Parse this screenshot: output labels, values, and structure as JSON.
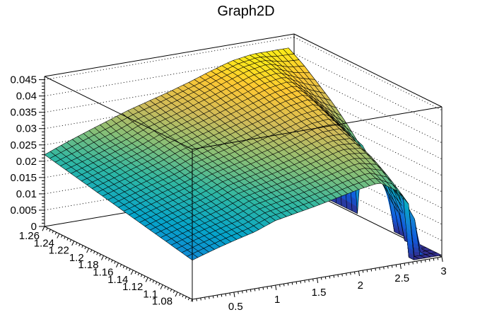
{
  "title": "Graph2D",
  "chart_data": {
    "type": "surface",
    "title": "Graph2D",
    "style": "ROOT TGraph2D surf1 (black mesh, palette-filled surface, dotted z-grid on back walls)",
    "x_axis": {
      "min": 0,
      "max": 3,
      "major_ticks": [
        0.5,
        1,
        1.5,
        2,
        2.5,
        3
      ],
      "labels": [
        "0.5",
        "1",
        "1.5",
        "2",
        "2.5",
        "3"
      ],
      "minor_step": 0.05
    },
    "y_axis": {
      "min": 1.06,
      "max": 1.26,
      "major_ticks": [
        1.08,
        1.1,
        1.12,
        1.14,
        1.16,
        1.18,
        1.2,
        1.22,
        1.24,
        1.26
      ],
      "labels": [
        "1.08",
        "1.1",
        "1.12",
        "1.14",
        "1.16",
        "1.18",
        "1.2",
        "1.22",
        "1.24",
        "1.26"
      ],
      "minor_step": 0.004
    },
    "z_axis": {
      "min": 0,
      "max_label": 0.045,
      "box_max": 0.046,
      "color_max": 0.0435,
      "major_ticks": [
        0,
        0.005,
        0.01,
        0.015,
        0.02,
        0.025,
        0.03,
        0.035,
        0.04,
        0.045
      ],
      "labels": [
        "0",
        "0.005",
        "0.01",
        "0.015",
        "0.02",
        "0.025",
        "0.03",
        "0.035",
        "0.04",
        "0.045"
      ],
      "minor_step": 0.001
    },
    "surface_grid": {
      "x_values": [
        0,
        0.25,
        0.5,
        0.75,
        1,
        1.25,
        1.5,
        1.75,
        2,
        2.25,
        2.5,
        2.75,
        3
      ],
      "y_values": [
        1.06,
        1.08,
        1.1,
        1.12,
        1.14,
        1.16,
        1.18,
        1.2,
        1.22,
        1.24,
        1.26
      ],
      "z_values": [
        [
          0.012,
          0.014,
          0.0158,
          0.0174,
          0.0198,
          0.021,
          0.0222,
          0.0236,
          0.025,
          0.026,
          0.022,
          0.012,
          0.0005
        ],
        [
          0.013,
          0.015,
          0.0168,
          0.0185,
          0.0209,
          0.0222,
          0.0235,
          0.025,
          0.0267,
          0.028,
          0.026,
          0.014,
          0.0005
        ],
        [
          0.014,
          0.016,
          0.0178,
          0.0196,
          0.022,
          0.0234,
          0.0248,
          0.0264,
          0.0281,
          0.0298,
          0.029,
          0.018,
          0.0005
        ],
        [
          0.015,
          0.017,
          0.0189,
          0.0207,
          0.0231,
          0.0246,
          0.0261,
          0.0277,
          0.0295,
          0.0313,
          0.031,
          0.022,
          0.006
        ],
        [
          0.016,
          0.018,
          0.0199,
          0.0218,
          0.0242,
          0.0258,
          0.0274,
          0.0291,
          0.0309,
          0.0328,
          0.033,
          0.025,
          0.014
        ],
        [
          0.017,
          0.019,
          0.021,
          0.0229,
          0.0253,
          0.027,
          0.0287,
          0.0305,
          0.0323,
          0.0342,
          0.035,
          0.028,
          0.02
        ],
        [
          0.018,
          0.02,
          0.022,
          0.024,
          0.0264,
          0.0282,
          0.03,
          0.0319,
          0.0338,
          0.0358,
          0.037,
          0.031,
          0.026
        ],
        [
          0.019,
          0.021,
          0.0231,
          0.0251,
          0.0276,
          0.0294,
          0.0313,
          0.0333,
          0.0353,
          0.0374,
          0.0386,
          0.034,
          0.031
        ],
        [
          0.02,
          0.022,
          0.0241,
          0.0262,
          0.0287,
          0.0306,
          0.0326,
          0.0347,
          0.0368,
          0.039,
          0.04,
          0.037,
          0.035
        ],
        [
          0.021,
          0.023,
          0.0252,
          0.0273,
          0.0299,
          0.0318,
          0.0339,
          0.036,
          0.0382,
          0.0404,
          0.0415,
          0.0395,
          0.039
        ],
        [
          0.022,
          0.0245,
          0.0268,
          0.029,
          0.0312,
          0.033,
          0.0348,
          0.0368,
          0.039,
          0.041,
          0.042,
          0.042,
          0.042
        ]
      ],
      "boundary_x_cut": [
        2.66,
        2.82,
        2.93,
        2.99,
        3.01,
        3.01,
        2.995,
        2.98,
        2.97,
        2.965,
        2.96
      ],
      "floor_z": 0.0005
    },
    "palette": [
      "#352a87",
      "#0f5cde",
      "#1481d6",
      "#06a4ca",
      "#2eb7a4",
      "#87bf77",
      "#d1bb59",
      "#fec832",
      "#f9fb0e"
    ],
    "mesh": {
      "nx": 45,
      "ny": 28
    },
    "frame_color": "#000000",
    "background_color": "#ffffff"
  }
}
